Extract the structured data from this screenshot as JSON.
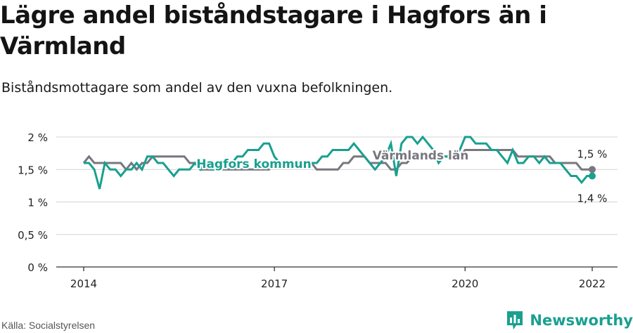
{
  "title": "Lägre andel biståndstagare i Hagfors än i Värmland",
  "subtitle": "Biståndsmottagare som andel av den vuxna befolkningen.",
  "source": "Källa: Socialstyrelsen",
  "brand": {
    "name": "Newsworthy",
    "icon": "bar-chart-logo-icon",
    "color": "#19a08f"
  },
  "chart_data": {
    "type": "line",
    "ylim": [
      0,
      2
    ],
    "yticks": [
      {
        "value": 0,
        "label": "0 %"
      },
      {
        "value": 0.5,
        "label": "0,5 %"
      },
      {
        "value": 1,
        "label": "1 %"
      },
      {
        "value": 1.5,
        "label": "1,5 %"
      },
      {
        "value": 2,
        "label": "2 %"
      }
    ],
    "xticks": [
      {
        "value": 2014,
        "label": "2014"
      },
      {
        "value": 2017,
        "label": "2017"
      },
      {
        "value": 2020,
        "label": "2020"
      },
      {
        "value": 2022,
        "label": "2022"
      }
    ],
    "grid": true,
    "series": [
      {
        "name": "Värmlands län",
        "color": "#77777f",
        "end_label": "1,5 %",
        "x": [
          2014.0,
          2014.083,
          2014.167,
          2014.25,
          2014.333,
          2014.417,
          2014.5,
          2014.583,
          2014.667,
          2014.75,
          2014.833,
          2014.917,
          2015.0,
          2015.083,
          2015.167,
          2015.25,
          2015.333,
          2015.417,
          2015.5,
          2015.583,
          2015.667,
          2015.75,
          2015.833,
          2015.917,
          2016.0,
          2016.083,
          2016.167,
          2016.25,
          2016.333,
          2016.417,
          2016.5,
          2016.583,
          2016.667,
          2016.75,
          2016.833,
          2016.917,
          2017.0,
          2017.083,
          2017.167,
          2017.25,
          2017.333,
          2017.417,
          2017.5,
          2017.583,
          2017.667,
          2017.75,
          2017.833,
          2017.917,
          2018.0,
          2018.083,
          2018.167,
          2018.25,
          2018.333,
          2018.417,
          2018.5,
          2018.583,
          2018.667,
          2018.75,
          2018.833,
          2018.917,
          2019.0,
          2019.083,
          2019.167,
          2019.25,
          2019.333,
          2019.417,
          2019.5,
          2019.583,
          2019.667,
          2019.75,
          2019.833,
          2019.917,
          2020.0,
          2020.083,
          2020.167,
          2020.25,
          2020.333,
          2020.417,
          2020.5,
          2020.583,
          2020.667,
          2020.75,
          2020.833,
          2020.917,
          2021.0,
          2021.083,
          2021.167,
          2021.25,
          2021.333,
          2021.417,
          2021.5,
          2021.583,
          2021.667,
          2021.75,
          2021.833,
          2021.917,
          2022.0
        ],
        "y": [
          1.6,
          1.7,
          1.6,
          1.6,
          1.6,
          1.6,
          1.6,
          1.6,
          1.5,
          1.6,
          1.5,
          1.6,
          1.6,
          1.7,
          1.7,
          1.7,
          1.7,
          1.7,
          1.7,
          1.7,
          1.6,
          1.6,
          1.5,
          1.5,
          1.5,
          1.5,
          1.5,
          1.5,
          1.5,
          1.5,
          1.5,
          1.5,
          1.5,
          1.5,
          1.5,
          1.5,
          1.6,
          1.6,
          1.6,
          1.6,
          1.6,
          1.6,
          1.6,
          1.6,
          1.5,
          1.5,
          1.5,
          1.5,
          1.5,
          1.6,
          1.6,
          1.7,
          1.7,
          1.7,
          1.6,
          1.6,
          1.6,
          1.6,
          1.5,
          1.5,
          1.6,
          1.6,
          1.7,
          1.7,
          1.7,
          1.7,
          1.7,
          1.7,
          1.7,
          1.7,
          1.7,
          1.7,
          1.8,
          1.8,
          1.8,
          1.8,
          1.8,
          1.8,
          1.8,
          1.8,
          1.8,
          1.8,
          1.7,
          1.7,
          1.7,
          1.7,
          1.7,
          1.7,
          1.7,
          1.6,
          1.6,
          1.6,
          1.6,
          1.6,
          1.5,
          1.5,
          1.5
        ]
      },
      {
        "name": "Hagfors kommun",
        "color": "#19a08f",
        "end_label": "1,4 %",
        "x": [
          2014.0,
          2014.083,
          2014.167,
          2014.25,
          2014.333,
          2014.417,
          2014.5,
          2014.583,
          2014.667,
          2014.75,
          2014.833,
          2014.917,
          2015.0,
          2015.083,
          2015.167,
          2015.25,
          2015.333,
          2015.417,
          2015.5,
          2015.583,
          2015.667,
          2015.75,
          2015.833,
          2015.917,
          2016.0,
          2016.083,
          2016.167,
          2016.25,
          2016.333,
          2016.417,
          2016.5,
          2016.583,
          2016.667,
          2016.75,
          2016.833,
          2016.917,
          2017.0,
          2017.083,
          2017.167,
          2017.25,
          2017.333,
          2017.417,
          2017.5,
          2017.583,
          2017.667,
          2017.75,
          2017.833,
          2017.917,
          2018.0,
          2018.083,
          2018.167,
          2018.25,
          2018.333,
          2018.417,
          2018.5,
          2018.583,
          2018.667,
          2018.75,
          2018.833,
          2018.917,
          2019.0,
          2019.083,
          2019.167,
          2019.25,
          2019.333,
          2019.417,
          2019.5,
          2019.583,
          2019.667,
          2019.75,
          2019.833,
          2019.917,
          2020.0,
          2020.083,
          2020.167,
          2020.25,
          2020.333,
          2020.417,
          2020.5,
          2020.583,
          2020.667,
          2020.75,
          2020.833,
          2020.917,
          2021.0,
          2021.083,
          2021.167,
          2021.25,
          2021.333,
          2021.417,
          2021.5,
          2021.583,
          2021.667,
          2021.75,
          2021.833,
          2021.917,
          2022.0
        ],
        "y": [
          1.6,
          1.6,
          1.5,
          1.2,
          1.6,
          1.5,
          1.5,
          1.4,
          1.5,
          1.5,
          1.6,
          1.5,
          1.7,
          1.7,
          1.6,
          1.6,
          1.5,
          1.4,
          1.5,
          1.5,
          1.5,
          1.6,
          1.5,
          1.6,
          1.5,
          1.5,
          1.6,
          1.6,
          1.6,
          1.7,
          1.7,
          1.8,
          1.8,
          1.8,
          1.9,
          1.9,
          1.7,
          1.6,
          1.6,
          1.6,
          1.6,
          1.6,
          1.6,
          1.6,
          1.6,
          1.7,
          1.7,
          1.8,
          1.8,
          1.8,
          1.8,
          1.9,
          1.8,
          1.7,
          1.6,
          1.5,
          1.6,
          1.7,
          1.9,
          1.4,
          1.9,
          2.0,
          2.0,
          1.9,
          2.0,
          1.9,
          1.8,
          1.6,
          1.7,
          1.7,
          1.7,
          1.8,
          2.0,
          2.0,
          1.9,
          1.9,
          1.9,
          1.8,
          1.8,
          1.7,
          1.6,
          1.8,
          1.6,
          1.6,
          1.7,
          1.7,
          1.6,
          1.7,
          1.6,
          1.6,
          1.6,
          1.5,
          1.4,
          1.4,
          1.3,
          1.4,
          1.4
        ]
      }
    ],
    "series_labels": [
      {
        "series": "Hagfors kommun",
        "text": "Hagfors kommun"
      },
      {
        "series": "Värmlands län",
        "text": "Värmlands län"
      }
    ]
  }
}
